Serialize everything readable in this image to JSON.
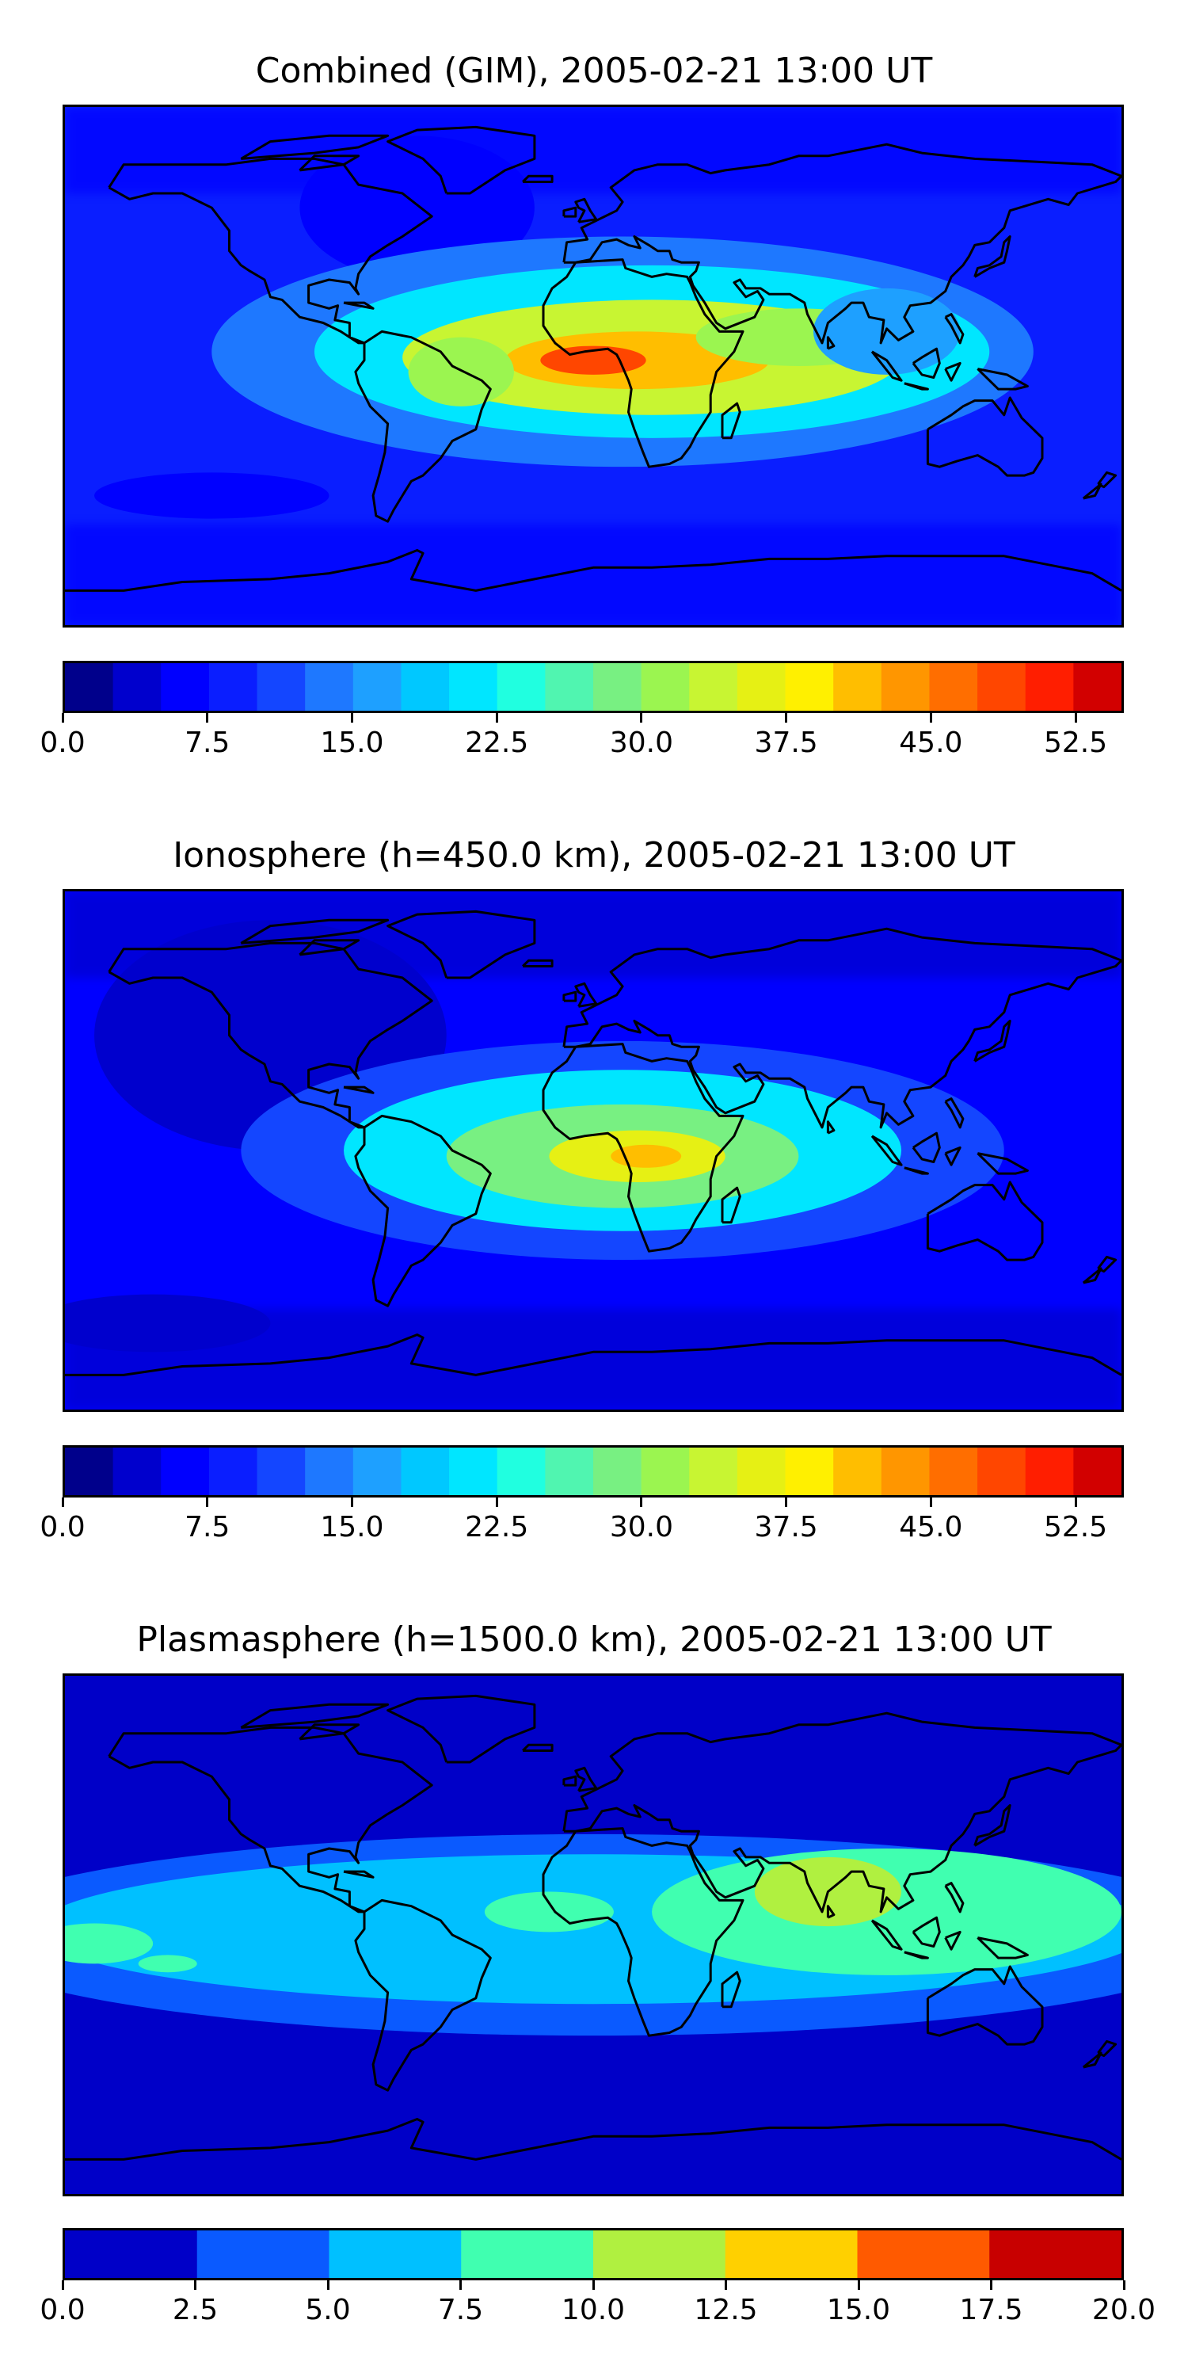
{
  "chart_data": [
    {
      "type": "heatmap",
      "title": "Combined (GIM), 2005-02-21 13:00 UT",
      "colorbar": {
        "range": [
          0,
          55
        ],
        "step": 2.5,
        "tick_labels": [
          "0.0",
          "7.5",
          "15.0",
          "22.5",
          "30.0",
          "37.5",
          "45.0",
          "52.5"
        ],
        "tick_values": [
          0,
          7.5,
          15,
          22.5,
          30,
          37.5,
          45,
          52.5
        ],
        "colors": [
          "#00008b",
          "#0000cd",
          "#0000ff",
          "#0a1eff",
          "#1446ff",
          "#1e78ff",
          "#1ea0ff",
          "#00c8ff",
          "#00e6ff",
          "#20ffe0",
          "#50f5b0",
          "#78f082",
          "#9bf550",
          "#c8f532",
          "#e6f014",
          "#fff000",
          "#ffbe00",
          "#ff9600",
          "#ff6e00",
          "#ff4600",
          "#ff1e00",
          "#d20000",
          "#8b0000"
        ]
      },
      "features": [
        {
          "value": 6,
          "lon": -60,
          "lat": 55,
          "rx": 40,
          "ry": 25
        },
        {
          "value": 13,
          "lon": 10,
          "lat": 5,
          "rx": 140,
          "ry": 40
        },
        {
          "value": 22,
          "lon": 20,
          "lat": 5,
          "rx": 115,
          "ry": 30
        },
        {
          "value": 33,
          "lon": 20,
          "lat": 3,
          "rx": 85,
          "ry": 20
        },
        {
          "value": 42,
          "lon": 15,
          "lat": 2,
          "rx": 45,
          "ry": 10
        },
        {
          "value": 49,
          "lon": 0,
          "lat": 2,
          "rx": 18,
          "ry": 5
        },
        {
          "value": 32,
          "lon": -45,
          "lat": -2,
          "rx": 18,
          "ry": 12
        },
        {
          "value": 30,
          "lon": 70,
          "lat": 10,
          "rx": 35,
          "ry": 10
        },
        {
          "value": 17,
          "lon": 100,
          "lat": 12,
          "rx": 25,
          "ry": 15
        },
        {
          "value": 5,
          "lon": -130,
          "lat": -45,
          "rx": 40,
          "ry": 8
        }
      ],
      "base_value": 8
    },
    {
      "type": "heatmap",
      "title": "Ionosphere  (h=450.0 km), 2005-02-21 13:00 UT",
      "colorbar": {
        "range": [
          0,
          55
        ],
        "step": 2.5,
        "tick_labels": [
          "0.0",
          "7.5",
          "15.0",
          "22.5",
          "30.0",
          "37.5",
          "45.0",
          "52.5"
        ],
        "tick_values": [
          0,
          7.5,
          15,
          22.5,
          30,
          37.5,
          45,
          52.5
        ],
        "colors": [
          "#00008b",
          "#0000cd",
          "#0000ff",
          "#0a1eff",
          "#1446ff",
          "#1e78ff",
          "#1ea0ff",
          "#00c8ff",
          "#00e6ff",
          "#20ffe0",
          "#50f5b0",
          "#78f082",
          "#9bf550",
          "#c8f532",
          "#e6f014",
          "#fff000",
          "#ffbe00",
          "#ff9600",
          "#ff6e00",
          "#ff4600",
          "#ff1e00",
          "#d20000",
          "#8b0000"
        ]
      },
      "features": [
        {
          "value": 4,
          "lon": -110,
          "lat": 40,
          "rx": 60,
          "ry": 40
        },
        {
          "value": 12,
          "lon": 10,
          "lat": 0,
          "rx": 130,
          "ry": 38
        },
        {
          "value": 20,
          "lon": 10,
          "lat": 0,
          "rx": 95,
          "ry": 28
        },
        {
          "value": 28,
          "lon": 10,
          "lat": -2,
          "rx": 60,
          "ry": 18
        },
        {
          "value": 36,
          "lon": 15,
          "lat": -2,
          "rx": 30,
          "ry": 9
        },
        {
          "value": 42,
          "lon": 18,
          "lat": -2,
          "rx": 12,
          "ry": 4
        },
        {
          "value": 3,
          "lon": -150,
          "lat": -60,
          "rx": 40,
          "ry": 10
        }
      ],
      "base_value": 6
    },
    {
      "type": "heatmap",
      "title": "Plasmasphere (h=1500.0 km), 2005-02-21 13:00 UT",
      "colorbar": {
        "range": [
          0,
          20
        ],
        "step": 2.5,
        "tick_labels": [
          "0.0",
          "2.5",
          "5.0",
          "7.5",
          "10.0",
          "12.5",
          "15.0",
          "17.5",
          "20.0"
        ],
        "tick_values": [
          0,
          2.5,
          5,
          7.5,
          10,
          12.5,
          15,
          17.5,
          20
        ],
        "colors": [
          "#0000c8",
          "#0a5aff",
          "#00c0ff",
          "#40ffb0",
          "#b0f040",
          "#ffd000",
          "#ff5a00",
          "#c80000"
        ]
      },
      "features": [
        {
          "value": 3.5,
          "lon": 0,
          "lat": 0,
          "rx": 220,
          "ry": 35
        },
        {
          "value": 6,
          "lon": 0,
          "lat": 2,
          "rx": 190,
          "ry": 26
        },
        {
          "value": 8.5,
          "lon": -170,
          "lat": -3,
          "rx": 20,
          "ry": 7
        },
        {
          "value": 8.5,
          "lon": -15,
          "lat": 8,
          "rx": 22,
          "ry": 7
        },
        {
          "value": 8.5,
          "lon": 100,
          "lat": 8,
          "rx": 80,
          "ry": 22
        },
        {
          "value": 11,
          "lon": 80,
          "lat": 15,
          "rx": 25,
          "ry": 12
        },
        {
          "value": 8.5,
          "lon": -145,
          "lat": -10,
          "rx": 10,
          "ry": 3
        }
      ],
      "base_value": 1
    }
  ]
}
